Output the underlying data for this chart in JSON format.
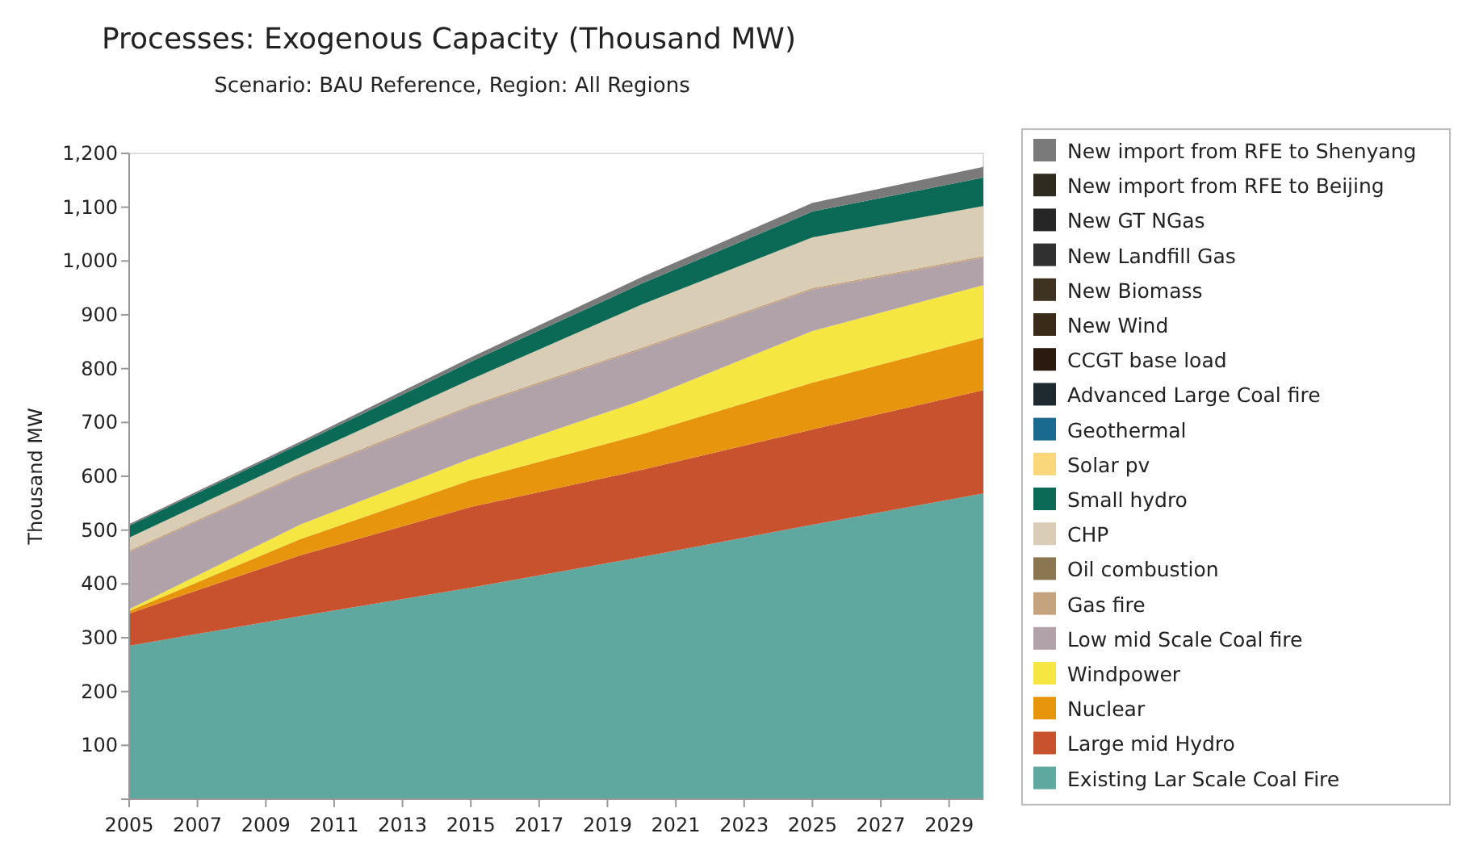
{
  "chart_data": {
    "type": "area",
    "stacked": true,
    "title": "Processes: Exogenous Capacity (Thousand MW)",
    "subtitle": "Scenario: BAU Reference, Region: All Regions",
    "ylabel": "Thousand MW",
    "x": [
      2005,
      2010,
      2015,
      2020,
      2025,
      2030
    ],
    "xlim": [
      2005,
      2030
    ],
    "xticks": [
      2005,
      2007,
      2009,
      2011,
      2013,
      2015,
      2017,
      2019,
      2021,
      2023,
      2025,
      2027,
      2029
    ],
    "ylim": [
      0,
      1200
    ],
    "yticks": [
      {
        "value": 0,
        "label": null
      },
      100,
      200,
      300,
      400,
      500,
      600,
      700,
      800,
      900,
      {
        "value": 1000,
        "label": "1,000"
      },
      {
        "value": 1100,
        "label": "1,100"
      },
      {
        "value": 1200,
        "label": "1,200"
      }
    ],
    "grid": false,
    "legend": "right",
    "series": [
      {
        "name": "Existing Lar Scale Coal Fire",
        "color": "#5fa8a0",
        "values": [
          285,
          340,
          393,
          450,
          510,
          568
        ]
      },
      {
        "name": "Large mid Hydro",
        "color": "#c9522e",
        "values": [
          60,
          113,
          150,
          162,
          177,
          192
        ]
      },
      {
        "name": "Nuclear",
        "color": "#e8950e",
        "values": [
          5,
          30,
          50,
          66,
          87,
          98
        ]
      },
      {
        "name": "Windpower",
        "color": "#f5e642",
        "values": [
          3,
          27,
          40,
          63,
          96,
          97
        ]
      },
      {
        "name": "Low mid Scale Coal fire",
        "color": "#b0a2a8",
        "values": [
          106,
          92,
          96,
          95,
          77,
          51
        ]
      },
      {
        "name": "Gas fire",
        "color": "#c4a27e",
        "values": [
          3,
          3,
          3,
          3,
          3,
          3
        ]
      },
      {
        "name": "Oil combustion",
        "color": "#8a7650",
        "values": [
          null,
          null,
          null,
          null,
          null,
          null
        ]
      },
      {
        "name": "CHP",
        "color": "#d9cdb5",
        "values": [
          24,
          30,
          48,
          80,
          94,
          93
        ]
      },
      {
        "name": "Small hydro",
        "color": "#0b6a55",
        "values": [
          22,
          25,
          33,
          39,
          48,
          53
        ]
      },
      {
        "name": "Solar pv",
        "color": "#f9d77a",
        "values": [
          null,
          null,
          null,
          null,
          null,
          null
        ]
      },
      {
        "name": "Geothermal",
        "color": "#1a6a90",
        "values": [
          null,
          null,
          null,
          null,
          null,
          null
        ]
      },
      {
        "name": "Advanced Large Coal fire",
        "color": "#1e2a30",
        "values": [
          null,
          null,
          null,
          null,
          null,
          null
        ]
      },
      {
        "name": "CCGT base load",
        "color": "#2b1a10",
        "values": [
          null,
          null,
          null,
          null,
          null,
          null
        ]
      },
      {
        "name": "New Wind",
        "color": "#3a2a18",
        "values": [
          null,
          null,
          null,
          null,
          null,
          null
        ]
      },
      {
        "name": "New Biomass",
        "color": "#3d3320",
        "values": [
          null,
          null,
          null,
          null,
          null,
          null
        ]
      },
      {
        "name": "New Landfill Gas",
        "color": "#303030",
        "values": [
          null,
          null,
          null,
          null,
          null,
          null
        ]
      },
      {
        "name": "New GT NGas",
        "color": "#262626",
        "values": [
          null,
          null,
          null,
          null,
          null,
          null
        ]
      },
      {
        "name": "New import from RFE to Beijing",
        "color": "#2e2a20",
        "values": [
          null,
          null,
          null,
          null,
          null,
          null
        ]
      },
      {
        "name": "New import from RFE to Shenyang",
        "color": "#7a7a7a",
        "values": [
          3,
          4,
          8,
          12,
          16,
          20
        ]
      }
    ]
  }
}
